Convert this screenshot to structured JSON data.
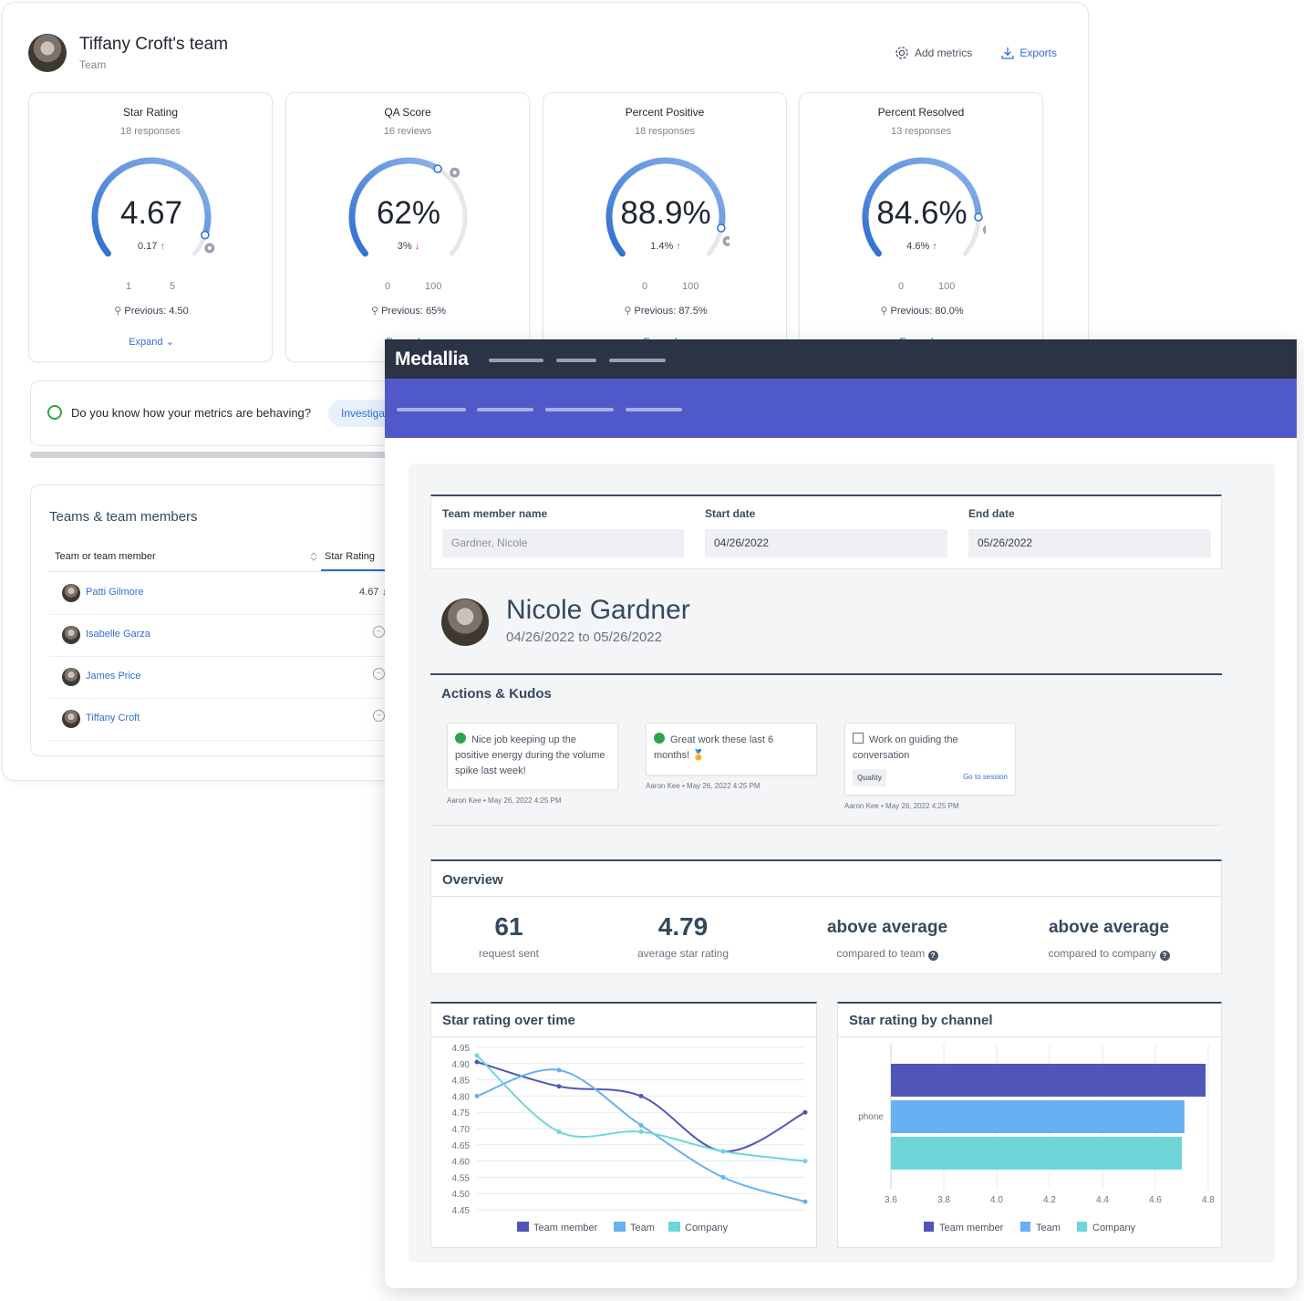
{
  "team": {
    "title": "Tiffany Croft's team",
    "subtitle": "Team",
    "add_metrics": "Add metrics",
    "exports": "Exports"
  },
  "metrics": [
    {
      "name": "Star Rating",
      "count": "18 responses",
      "value": "4.67",
      "delta": "0.17",
      "direction": "up",
      "scale_min": "1",
      "scale_max": "5",
      "previous": "Previous: 4.50",
      "expand": "Expand",
      "fraction": 0.917
    },
    {
      "name": "QA Score",
      "count": "16 reviews",
      "value": "62%",
      "delta": "3%",
      "direction": "down",
      "scale_min": "0",
      "scale_max": "100",
      "previous": "Previous: 65%",
      "expand": "Expand",
      "fraction": 0.62
    },
    {
      "name": "Percent Positive",
      "count": "18 responses",
      "value": "88.9%",
      "delta": "1.4%",
      "direction": "up",
      "scale_min": "0",
      "scale_max": "100",
      "previous": "Previous: 87.5%",
      "expand": "Expand",
      "fraction": 0.889
    },
    {
      "name": "Percent Resolved",
      "count": "13 responses",
      "value": "84.6%",
      "delta": "4.6%",
      "direction": "up",
      "scale_min": "0",
      "scale_max": "100",
      "previous": "Previous: 80.0%",
      "expand": "Expand",
      "fraction": 0.846
    }
  ],
  "behave": {
    "question": "Do you know how your metrics are behaving?",
    "button": "Investiga"
  },
  "teams": {
    "title": "Teams & team members",
    "col_member": "Team or team member",
    "col_rating": "Star Rating",
    "rows": [
      {
        "name": "Patti Gilmore",
        "value": "4.67"
      },
      {
        "name": "Isabelle Garza",
        "value": ""
      },
      {
        "name": "James Price",
        "value": ""
      },
      {
        "name": "Tiffany Croft",
        "value": ""
      }
    ]
  },
  "medallia": {
    "brand": "Medallia",
    "filters": {
      "member_label": "Team member name",
      "member_placeholder": "Gardner, Nicole",
      "start_label": "Start date",
      "start_value": "04/26/2022",
      "end_label": "End date",
      "end_value": "05/26/2022"
    },
    "profile": {
      "name": "Nicole Gardner",
      "range": "04/26/2022 to 05/26/2022"
    },
    "kudos": {
      "title": "Actions & Kudos",
      "items": [
        {
          "text": "Nice job keeping up the positive energy during the volume spike last week!",
          "meta": "Aaron Kee • May 26, 2022 4:25 PM"
        },
        {
          "text": "Great work these last 6 months! 🏅",
          "meta": "Aaron Kee • May 26, 2022 4:25 PM"
        },
        {
          "text": "Work on guiding the conversation",
          "tag": "Quality",
          "link": "Go to session",
          "meta": "Aaron Kee • May 26, 2022 4:25 PM"
        }
      ]
    },
    "overview": {
      "title": "Overview",
      "stats": [
        {
          "value": "61",
          "label": "request sent"
        },
        {
          "value": "4.79",
          "label": "average star rating"
        },
        {
          "value": "above average",
          "label": "compared to team"
        },
        {
          "value": "above average",
          "label": "compared to company"
        }
      ]
    }
  },
  "chart_data": [
    {
      "type": "line",
      "title": "Star rating over time",
      "ylim": [
        4.45,
        4.95
      ],
      "yticks": [
        "4.95",
        "4.90",
        "4.85",
        "4.80",
        "4.75",
        "4.70",
        "4.65",
        "4.60",
        "4.55",
        "4.50",
        "4.45"
      ],
      "x": [
        0,
        1,
        2,
        3,
        4
      ],
      "grid": true,
      "legend": "bottom",
      "series": [
        {
          "name": "Team member",
          "color": "#5056b8",
          "values": [
            4.905,
            4.83,
            4.8,
            4.63,
            4.75
          ]
        },
        {
          "name": "Team",
          "color": "#66b1f2",
          "values": [
            4.8,
            4.88,
            4.71,
            4.55,
            4.475
          ]
        },
        {
          "name": "Company",
          "color": "#6ed6d8",
          "values": [
            4.925,
            4.69,
            4.69,
            4.63,
            4.6
          ]
        }
      ]
    },
    {
      "type": "bar",
      "orientation": "horizontal",
      "title": "Star rating by channel",
      "categories": [
        "phone"
      ],
      "xlim": [
        3.6,
        4.8
      ],
      "xticks": [
        "3.6",
        "3.8",
        "4.0",
        "4.2",
        "4.4",
        "4.6",
        "4.8"
      ],
      "legend": "bottom",
      "series": [
        {
          "name": "Team member",
          "color": "#5056b8",
          "values": [
            4.79
          ]
        },
        {
          "name": "Team",
          "color": "#66b1f2",
          "values": [
            4.71
          ]
        },
        {
          "name": "Company",
          "color": "#6ed6d8",
          "values": [
            4.7
          ]
        }
      ]
    }
  ]
}
